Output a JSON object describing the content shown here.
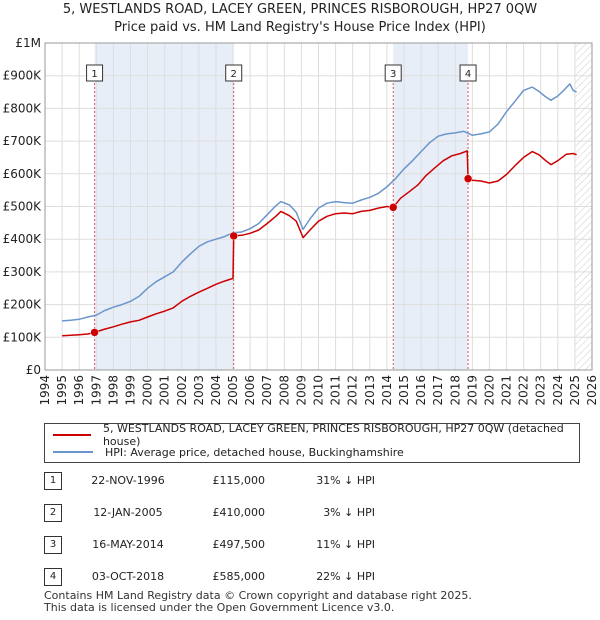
{
  "title_line1": "5, WESTLANDS ROAD, LACEY GREEN, PRINCES RISBOROUGH, HP27 0QW",
  "title_line2": "Price paid vs. HM Land Registry's House Price Index (HPI)",
  "colors": {
    "property": "#cc0000",
    "hpi": "#6a96cc",
    "shade": "#e8eef8",
    "marker_line": "#e05555"
  },
  "legend": {
    "property_label": "5, WESTLANDS ROAD, LACEY GREEN, PRINCES RISBOROUGH, HP27 0QW (detached house)",
    "hpi_label": "HPI: Average price, detached house, Buckinghamshire"
  },
  "sales": [
    {
      "num": "1",
      "date": "22-NOV-1996",
      "price": "£115,000",
      "hpi": "31% ↓ HPI"
    },
    {
      "num": "2",
      "date": "12-JAN-2005",
      "price": "£410,000",
      "hpi": "3% ↓ HPI"
    },
    {
      "num": "3",
      "date": "16-MAY-2014",
      "price": "£497,500",
      "hpi": "11% ↓ HPI"
    },
    {
      "num": "4",
      "date": "03-OCT-2018",
      "price": "£585,000",
      "hpi": "22% ↓ HPI"
    }
  ],
  "footer": {
    "line1": "Contains HM Land Registry data © Crown copyright and database right 2025.",
    "line2": "This data is licensed under the Open Government Licence v3.0."
  },
  "chart_data": {
    "type": "line",
    "title": "5, WESTLANDS ROAD, LACEY GREEN, PRINCES RISBOROUGH, HP27 0QW — Price paid vs. HM Land Registry's House Price Index (HPI)",
    "xlim": [
      1994,
      2026
    ],
    "ylim": [
      0,
      1000000
    ],
    "x_ticks": [
      "1994",
      "1995",
      "1996",
      "1997",
      "1998",
      "1999",
      "2000",
      "2001",
      "2002",
      "2003",
      "2004",
      "2005",
      "2006",
      "2007",
      "2008",
      "2009",
      "2010",
      "2011",
      "2012",
      "2013",
      "2014",
      "2015",
      "2016",
      "2017",
      "2018",
      "2019",
      "2020",
      "2021",
      "2022",
      "2023",
      "2024",
      "2025",
      "2026"
    ],
    "y_ticks": [
      {
        "value": 0,
        "label": "£0"
      },
      {
        "value": 100000,
        "label": "£100K"
      },
      {
        "value": 200000,
        "label": "£200K"
      },
      {
        "value": 300000,
        "label": "£300K"
      },
      {
        "value": 400000,
        "label": "£400K"
      },
      {
        "value": 500000,
        "label": "£500K"
      },
      {
        "value": 600000,
        "label": "£600K"
      },
      {
        "value": 700000,
        "label": "£700K"
      },
      {
        "value": 800000,
        "label": "£800K"
      },
      {
        "value": 900000,
        "label": "£900K"
      },
      {
        "value": 1000000,
        "label": "£1M"
      }
    ],
    "shaded_ranges": [
      [
        1996.9,
        2005.04
      ],
      [
        2014.37,
        2018.75
      ]
    ],
    "markers": [
      {
        "label": "1",
        "x": 1996.9,
        "y": 115000
      },
      {
        "label": "2",
        "x": 2005.04,
        "y": 410000
      },
      {
        "label": "3",
        "x": 2014.37,
        "y": 497500
      },
      {
        "label": "4",
        "x": 2018.75,
        "y": 585000
      }
    ],
    "series": [
      {
        "name": "5, WESTLANDS ROAD, LACEY GREEN, PRINCES RISBOROUGH, HP27 0QW (detached house)",
        "color": "#cc0000",
        "points": [
          [
            1995.0,
            105000
          ],
          [
            1995.5,
            106000
          ],
          [
            1996.0,
            108000
          ],
          [
            1996.5,
            110000
          ],
          [
            1996.9,
            115000
          ],
          [
            1997.5,
            125000
          ],
          [
            1998.0,
            132000
          ],
          [
            1998.5,
            140000
          ],
          [
            1999.0,
            147000
          ],
          [
            1999.5,
            152000
          ],
          [
            2000.0,
            162000
          ],
          [
            2000.5,
            172000
          ],
          [
            2001.0,
            180000
          ],
          [
            2001.5,
            190000
          ],
          [
            2002.0,
            210000
          ],
          [
            2002.5,
            225000
          ],
          [
            2003.0,
            238000
          ],
          [
            2003.5,
            250000
          ],
          [
            2004.0,
            262000
          ],
          [
            2004.5,
            272000
          ],
          [
            2005.0,
            280000
          ],
          [
            2005.04,
            410000
          ],
          [
            2005.5,
            412000
          ],
          [
            2006.0,
            418000
          ],
          [
            2006.5,
            428000
          ],
          [
            2007.0,
            448000
          ],
          [
            2007.5,
            470000
          ],
          [
            2007.8,
            485000
          ],
          [
            2008.3,
            472000
          ],
          [
            2008.7,
            455000
          ],
          [
            2009.1,
            405000
          ],
          [
            2009.5,
            428000
          ],
          [
            2010.0,
            455000
          ],
          [
            2010.5,
            470000
          ],
          [
            2011.0,
            478000
          ],
          [
            2011.5,
            480000
          ],
          [
            2012.0,
            478000
          ],
          [
            2012.5,
            485000
          ],
          [
            2013.0,
            488000
          ],
          [
            2013.5,
            495000
          ],
          [
            2014.0,
            500000
          ],
          [
            2014.37,
            497500
          ],
          [
            2014.8,
            525000
          ],
          [
            2015.3,
            545000
          ],
          [
            2015.8,
            565000
          ],
          [
            2016.3,
            595000
          ],
          [
            2016.8,
            618000
          ],
          [
            2017.3,
            640000
          ],
          [
            2017.8,
            655000
          ],
          [
            2018.3,
            662000
          ],
          [
            2018.7,
            670000
          ],
          [
            2018.75,
            585000
          ],
          [
            2019.0,
            580000
          ],
          [
            2019.5,
            578000
          ],
          [
            2020.0,
            572000
          ],
          [
            2020.5,
            578000
          ],
          [
            2021.0,
            598000
          ],
          [
            2021.5,
            625000
          ],
          [
            2022.0,
            650000
          ],
          [
            2022.5,
            668000
          ],
          [
            2022.9,
            658000
          ],
          [
            2023.3,
            640000
          ],
          [
            2023.6,
            628000
          ],
          [
            2024.0,
            640000
          ],
          [
            2024.5,
            660000
          ],
          [
            2024.9,
            662000
          ],
          [
            2025.1,
            658000
          ]
        ]
      },
      {
        "name": "HPI: Average price, detached house, Buckinghamshire",
        "color": "#6a96cc",
        "points": [
          [
            1995.0,
            150000
          ],
          [
            1995.5,
            152000
          ],
          [
            1996.0,
            155000
          ],
          [
            1996.5,
            162000
          ],
          [
            1997.0,
            168000
          ],
          [
            1997.5,
            182000
          ],
          [
            1998.0,
            192000
          ],
          [
            1998.5,
            200000
          ],
          [
            1999.0,
            210000
          ],
          [
            1999.5,
            225000
          ],
          [
            2000.0,
            250000
          ],
          [
            2000.5,
            270000
          ],
          [
            2001.0,
            285000
          ],
          [
            2001.5,
            300000
          ],
          [
            2002.0,
            330000
          ],
          [
            2002.5,
            355000
          ],
          [
            2003.0,
            378000
          ],
          [
            2003.5,
            392000
          ],
          [
            2004.0,
            400000
          ],
          [
            2004.5,
            408000
          ],
          [
            2005.0,
            420000
          ],
          [
            2005.5,
            422000
          ],
          [
            2006.0,
            432000
          ],
          [
            2006.5,
            448000
          ],
          [
            2007.0,
            475000
          ],
          [
            2007.5,
            502000
          ],
          [
            2007.8,
            515000
          ],
          [
            2008.3,
            505000
          ],
          [
            2008.7,
            482000
          ],
          [
            2009.1,
            430000
          ],
          [
            2009.5,
            462000
          ],
          [
            2010.0,
            495000
          ],
          [
            2010.5,
            510000
          ],
          [
            2011.0,
            515000
          ],
          [
            2011.5,
            512000
          ],
          [
            2012.0,
            510000
          ],
          [
            2012.5,
            520000
          ],
          [
            2013.0,
            528000
          ],
          [
            2013.5,
            540000
          ],
          [
            2014.0,
            560000
          ],
          [
            2014.5,
            585000
          ],
          [
            2015.0,
            615000
          ],
          [
            2015.5,
            640000
          ],
          [
            2016.0,
            668000
          ],
          [
            2016.5,
            695000
          ],
          [
            2017.0,
            715000
          ],
          [
            2017.5,
            722000
          ],
          [
            2018.0,
            725000
          ],
          [
            2018.5,
            730000
          ],
          [
            2019.0,
            718000
          ],
          [
            2019.5,
            722000
          ],
          [
            2020.0,
            728000
          ],
          [
            2020.5,
            752000
          ],
          [
            2021.0,
            790000
          ],
          [
            2021.5,
            822000
          ],
          [
            2022.0,
            855000
          ],
          [
            2022.5,
            865000
          ],
          [
            2022.9,
            852000
          ],
          [
            2023.3,
            835000
          ],
          [
            2023.6,
            825000
          ],
          [
            2024.0,
            838000
          ],
          [
            2024.4,
            858000
          ],
          [
            2024.7,
            875000
          ],
          [
            2024.9,
            855000
          ],
          [
            2025.1,
            850000
          ]
        ]
      }
    ]
  }
}
